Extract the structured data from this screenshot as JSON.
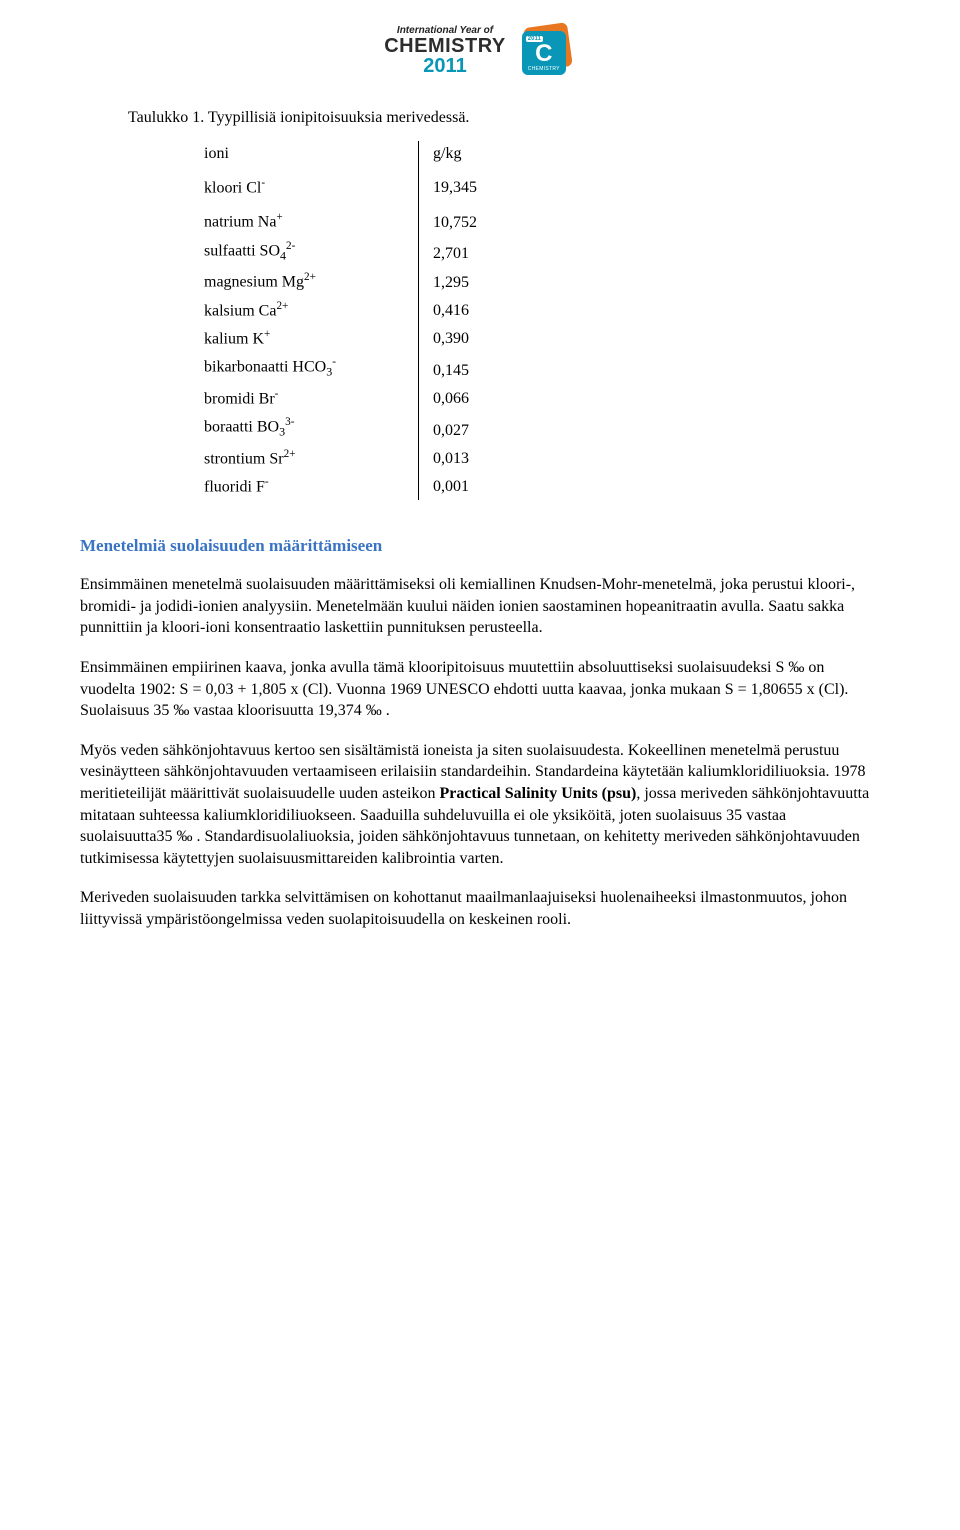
{
  "logo": {
    "top_text": "International Year of",
    "main_text": "CHEMISTRY",
    "year": "2011",
    "badge_year": "2011",
    "badge_letter": "C",
    "badge_sub": "CHEMISTRY"
  },
  "caption": "Taulukko 1. Tyypillisiä ionipitoisuuksia merivedessä.",
  "table": {
    "header_ion": "ioni",
    "header_val": "g/kg",
    "rows": [
      {
        "ion_html": "kloori Cl<sup>-</sup>",
        "val": "19,345"
      },
      {
        "ion_html": "natrium Na<sup>+</sup>",
        "val": "10,752"
      },
      {
        "ion_html": "sulfaatti SO<sub>4</sub><sup>2-</sup>",
        "val": "2,701"
      },
      {
        "ion_html": "magnesium Mg<sup>2+</sup>",
        "val": "1,295"
      },
      {
        "ion_html": "kalsium Ca<sup>2+</sup>",
        "val": "0,416"
      },
      {
        "ion_html": "kalium K<sup>+</sup>",
        "val": "0,390"
      },
      {
        "ion_html": "bikarbonaatti HCO<sub>3</sub><sup>-</sup>",
        "val": "0,145"
      },
      {
        "ion_html": "bromidi Br<sup>-</sup>",
        "val": "0,066"
      },
      {
        "ion_html": "boraatti BO<sub>3</sub><sup>3-</sup>",
        "val": "0,027"
      },
      {
        "ion_html": "strontium Sr<sup>2+</sup>",
        "val": "0,013"
      },
      {
        "ion_html": "fluoridi F<sup>-</sup>",
        "val": "0,001"
      }
    ]
  },
  "section_heading": "Menetelmiä suolaisuuden määrittämiseen",
  "paragraphs": {
    "p1": "Ensimmäinen menetelmä suolaisuuden määrittämiseksi oli kemiallinen Knudsen-Mohr-menetelmä, joka perustui kloori-, bromidi- ja jodidi-ionien analyysiin. Menetelmään kuului näiden ionien saostaminen hopeanitraatin avulla. Saatu sakka punnittiin ja kloori-ioni konsentraatio laskettiin punnituksen perusteella.",
    "p2": "Ensimmäinen empiirinen kaava, jonka avulla tämä klooripitoisuus muutettiin absoluuttiseksi suolaisuudeksi S ‰  on vuodelta 1902: S = 0,03 + 1,805 x (Cl). Vuonna 1969 UNESCO ehdotti uutta kaavaa, jonka mukaan S = 1,80655 x (Cl). Suolaisuus 35 ‰  vastaa kloorisuutta 19,374 ‰ .",
    "p3_pre": "Myös veden sähkönjohtavuus kertoo sen sisältämistä ioneista ja siten suolaisuudesta. Kokeellinen menetelmä perustuu vesinäytteen sähkönjohtavuuden vertaamiseen erilaisiin standardeihin. Standardeina käytetään kaliumkloridiliuoksia. 1978 meritieteilijät määrittivät suolaisuudelle uuden asteikon ",
    "p3_bold": "Practical Salinity Units (psu)",
    "p3_post": ", jossa meriveden sähkönjohtavuutta mitataan suhteessa kaliumkloridiliuokseen. Saaduilla suhdeluvuilla ei ole yksiköitä, joten suolaisuus 35 vastaa suolaisuutta35 ‰ . Standardisuolaliuoksia, joiden sähkönjohtavuus tunnetaan, on kehitetty meriveden sähkönjohtavuuden tutkimisessa käytettyjen suolaisuusmittareiden kalibrointia varten.",
    "p4": "Meriveden suolaisuuden tarkka selvittämisen on kohottanut maailmanlaajuiseksi huolenaiheeksi ilmastonmuutos, johon liittyvissä ympäristöongelmissa veden suolapitoisuudella on keskeinen rooli."
  },
  "colors": {
    "heading": "#3a74c4",
    "logo_teal": "#0a97b7",
    "logo_orange": "#e87722",
    "text": "#000000",
    "background": "#ffffff"
  },
  "fonts": {
    "body_family": "Times New Roman",
    "body_size_pt": 12,
    "heading_size_pt": 13
  }
}
